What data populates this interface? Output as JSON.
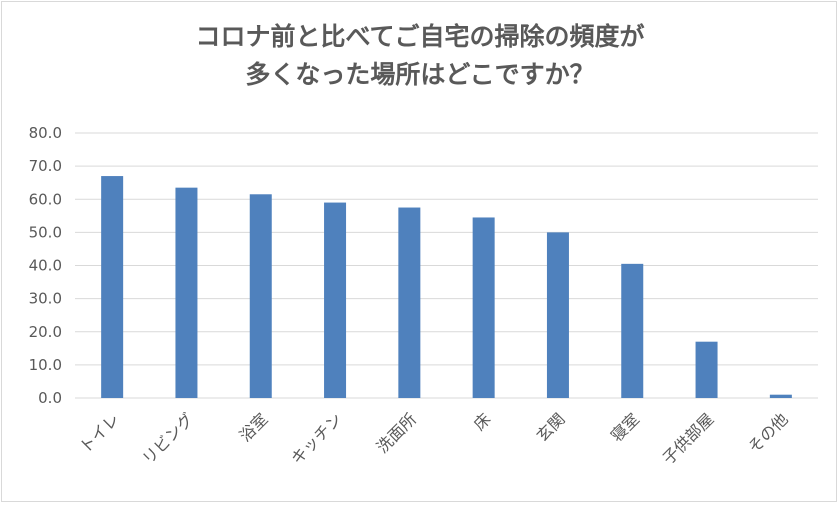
{
  "chart_data": {
    "type": "bar",
    "title_line1": "コロナ前と比べてご自宅の掃除の頻度が",
    "title_line2": "多くなった場所はどこですか？",
    "categories": [
      "トイレ",
      "リビング",
      "浴室",
      "キッチン",
      "洗面所",
      "床",
      "玄関",
      "寝室",
      "子供部屋",
      "その他"
    ],
    "values": [
      67.0,
      63.5,
      61.5,
      59.0,
      57.5,
      54.5,
      50.0,
      40.5,
      17.0,
      1.0
    ],
    "ylim": [
      0,
      80
    ],
    "yticks": [
      "0.0",
      "10.0",
      "20.0",
      "30.0",
      "40.0",
      "50.0",
      "60.0",
      "70.0",
      "80.0"
    ],
    "grid": true,
    "bar_color": "#4f81bd",
    "grid_color": "#d9d9d9",
    "text_color": "#595959"
  }
}
